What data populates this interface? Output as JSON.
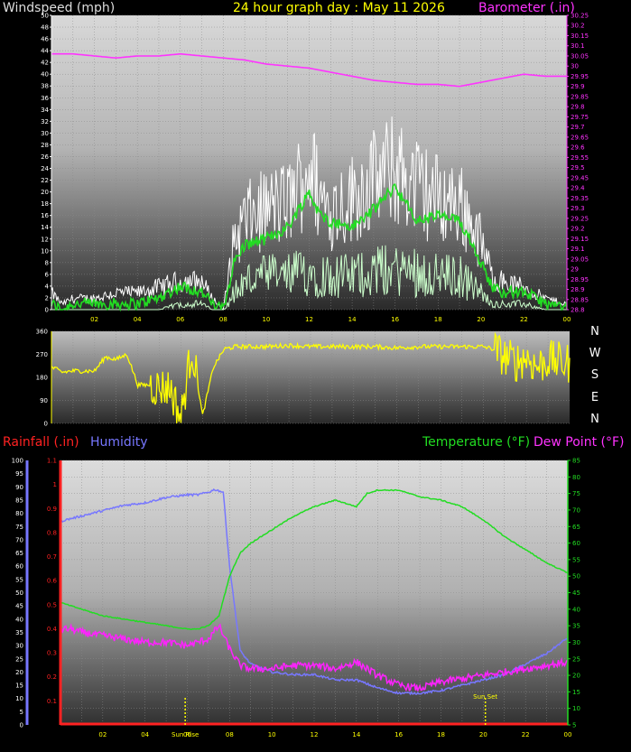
{
  "header": {
    "wind_label": "Windspeed (mph)",
    "title": "24 hour graph day : May 11 2026",
    "baro_label": "Barometer (.in)",
    "rain_label": "Rainfall (.in)",
    "humidity_label": "Humidity",
    "temp_label": "Temperature (°F)",
    "dew_label": "Dew Point (°F)"
  },
  "compass": [
    "N",
    "W",
    "S",
    "E",
    "N"
  ],
  "colors": {
    "wind_gust": "#ffffff",
    "wind_avg": "#22dd22",
    "wind_min": "#ccffcc",
    "barometer": "#ff33ff",
    "direction": "#ffff00",
    "rain": "#ff2222",
    "humidity": "#7777ff",
    "temperature": "#22dd22",
    "dewpoint": "#ff22ff",
    "sun": "#ffff00"
  },
  "x_ticks": [
    "02",
    "04",
    "06",
    "08",
    "10",
    "12",
    "14",
    "16",
    "18",
    "20",
    "22",
    "00"
  ],
  "chart_data": [
    {
      "type": "line",
      "name": "wind-baro",
      "xlim": [
        0,
        24
      ],
      "ylim": [
        0,
        50
      ],
      "y2lim": [
        28.8,
        30.25
      ],
      "y_ticks": [
        0,
        2,
        4,
        6,
        8,
        10,
        12,
        14,
        16,
        18,
        20,
        22,
        24,
        26,
        28,
        30,
        32,
        34,
        36,
        38,
        40,
        42,
        44,
        46,
        48,
        50
      ],
      "y2_ticks": [
        "28.8",
        "28.85",
        "28.9",
        "28.95",
        "29",
        "29.05",
        "29.1",
        "29.15",
        "29.2",
        "29.25",
        "29.3",
        "29.35",
        "29.4",
        "29.45",
        "29.5",
        "29.55",
        "29.6",
        "29.65",
        "29.7",
        "29.75",
        "29.8",
        "29.85",
        "29.9",
        "29.95",
        "30",
        "30.05",
        "30.1",
        "30.15",
        "30.2",
        "30.25"
      ],
      "series": [
        {
          "key": "gust",
          "axis": "y",
          "x": [
            0,
            0.5,
            1,
            2,
            3,
            4,
            5,
            6,
            7,
            7.5,
            8,
            8.5,
            9,
            10,
            11,
            11.5,
            12,
            12.5,
            13,
            14,
            15,
            16,
            17,
            18,
            19,
            19.5,
            20,
            20.5,
            21,
            22,
            23,
            24
          ],
          "values": [
            3,
            1,
            2,
            2,
            3,
            3,
            4,
            5,
            5,
            2,
            0,
            12,
            16,
            18,
            19,
            22,
            26,
            20,
            18,
            20,
            23,
            25,
            22,
            20,
            19,
            16,
            12,
            6,
            5,
            4,
            2,
            1
          ]
        },
        {
          "key": "avg",
          "axis": "y",
          "x": [
            0,
            0.5,
            1,
            2,
            3,
            4,
            5,
            6,
            7,
            7.5,
            8,
            8.5,
            9,
            10,
            11,
            11.5,
            12,
            12.5,
            13,
            14,
            15,
            16,
            17,
            18,
            19,
            19.5,
            20,
            20.5,
            21,
            22,
            23,
            24
          ],
          "values": [
            1,
            0,
            1,
            1,
            1,
            1,
            2,
            4,
            3,
            1,
            0,
            8,
            11,
            12,
            14,
            17,
            20,
            16,
            15,
            14,
            17,
            21,
            15,
            16,
            15,
            12,
            8,
            4,
            3,
            3,
            1,
            0
          ]
        },
        {
          "key": "min",
          "axis": "y",
          "x": [
            0,
            1,
            2,
            3,
            4,
            5,
            6,
            7,
            7.5,
            8,
            8.5,
            9,
            10,
            11,
            12,
            13,
            14,
            15,
            16,
            17,
            18,
            19,
            20,
            20.5,
            21,
            22,
            23,
            24
          ],
          "values": [
            0,
            0,
            0,
            0,
            0,
            0,
            1,
            1,
            0,
            0,
            3,
            5,
            6,
            6,
            7,
            6,
            6,
            7,
            7,
            7,
            6,
            6,
            3,
            1,
            1,
            1,
            0,
            0
          ]
        },
        {
          "key": "baro",
          "axis": "y2",
          "x": [
            0,
            1,
            2,
            3,
            4,
            5,
            6,
            7,
            8,
            9,
            10,
            11,
            12,
            13,
            14,
            15,
            16,
            17,
            18,
            19,
            20,
            21,
            22,
            23,
            24
          ],
          "values": [
            30.06,
            30.06,
            30.05,
            30.04,
            30.05,
            30.05,
            30.06,
            30.05,
            30.04,
            30.03,
            30.01,
            30.0,
            29.99,
            29.97,
            29.95,
            29.93,
            29.92,
            29.91,
            29.91,
            29.9,
            29.92,
            29.94,
            29.96,
            29.95,
            29.95
          ]
        }
      ]
    },
    {
      "type": "line",
      "name": "wind-direction",
      "xlim": [
        0,
        24
      ],
      "ylim": [
        0,
        360
      ],
      "y_ticks": [
        0,
        90,
        180,
        270,
        360
      ],
      "series": [
        {
          "key": "dir",
          "x": [
            0,
            0.5,
            1,
            1.5,
            2,
            2.5,
            3,
            3.5,
            4,
            4.5,
            5,
            5.5,
            6,
            6.5,
            7,
            7.5,
            8,
            8.5,
            9,
            10,
            11,
            12,
            13,
            14,
            15,
            16,
            17,
            18,
            19,
            20,
            20.5,
            21,
            21.5,
            22,
            22.5,
            23,
            23.5,
            24
          ],
          "values": [
            220,
            200,
            205,
            205,
            205,
            260,
            250,
            270,
            150,
            150,
            140,
            140,
            20,
            300,
            30,
            220,
            290,
            300,
            300,
            300,
            305,
            300,
            300,
            300,
            300,
            295,
            300,
            300,
            300,
            300,
            290,
            260,
            240,
            260,
            220,
            250,
            240,
            235
          ]
        }
      ]
    },
    {
      "type": "line",
      "name": "temp-humidity",
      "xlim": [
        0,
        24
      ],
      "y_hum_lim": [
        0,
        100
      ],
      "y_rain_lim": [
        0,
        1.1
      ],
      "y_temp_lim": [
        5,
        85
      ],
      "hum_ticks": [
        0,
        5,
        10,
        15,
        20,
        25,
        30,
        35,
        40,
        45,
        50,
        55,
        60,
        65,
        70,
        75,
        80,
        85,
        90,
        95,
        100
      ],
      "rain_ticks": [
        "0.1",
        "0.2",
        "0.3",
        "0.4",
        "0.5",
        "0.6",
        "0.7",
        "0.8",
        "0.9",
        "1",
        "1.1"
      ],
      "temp_ticks": [
        5,
        10,
        15,
        20,
        25,
        30,
        35,
        40,
        45,
        50,
        55,
        60,
        65,
        70,
        75,
        80,
        85
      ],
      "sun": {
        "rise": 5.9,
        "set": 20.1,
        "rise_label": "Sun Rise",
        "set_label": "Sun Set"
      },
      "series": [
        {
          "key": "temperature",
          "axis": "temp",
          "x": [
            0,
            0.5,
            1,
            2,
            3,
            4,
            5,
            6,
            6.5,
            7,
            7.5,
            8,
            8.5,
            9,
            10,
            11,
            12,
            13,
            14,
            14.5,
            15,
            16,
            17,
            18,
            19,
            20,
            21,
            22,
            23,
            24
          ],
          "values": [
            42,
            41,
            40,
            38,
            37,
            36,
            35,
            34,
            34,
            35,
            38,
            50,
            57,
            60,
            64,
            68,
            71,
            73,
            71,
            75,
            76,
            76,
            74,
            73,
            71,
            67,
            62,
            58,
            54,
            51
          ]
        },
        {
          "key": "dewpoint",
          "axis": "temp",
          "x": [
            0,
            0.5,
            1,
            2,
            3,
            4,
            5,
            6,
            6.5,
            7,
            7.5,
            8,
            8.5,
            9,
            10,
            11,
            12,
            13,
            14,
            15,
            16,
            17,
            18,
            19,
            20,
            21,
            22,
            23,
            24
          ],
          "values": [
            34,
            34,
            33,
            32,
            31,
            30,
            30,
            29,
            30,
            31,
            35,
            28,
            23,
            22,
            22,
            23,
            23,
            22,
            24,
            20,
            17,
            16,
            18,
            19,
            20,
            21,
            22,
            23,
            24
          ]
        },
        {
          "key": "humidity",
          "axis": "hum",
          "x": [
            0,
            0.5,
            1,
            2,
            3,
            4,
            5,
            6,
            6.5,
            7,
            7.3,
            7.7,
            8,
            8.5,
            9,
            10,
            11,
            12,
            13,
            14,
            15,
            16,
            17,
            18,
            19,
            20,
            21,
            22,
            23,
            24
          ],
          "values": [
            77,
            78,
            79,
            81,
            83,
            84,
            86,
            87,
            87,
            88,
            89,
            88,
            60,
            28,
            23,
            20,
            19,
            19,
            17,
            17,
            14,
            12,
            12,
            13,
            15,
            17,
            19,
            23,
            27,
            33
          ]
        },
        {
          "key": "rain",
          "axis": "rain",
          "x": [
            0,
            24
          ],
          "values": [
            0,
            0
          ]
        }
      ]
    }
  ]
}
